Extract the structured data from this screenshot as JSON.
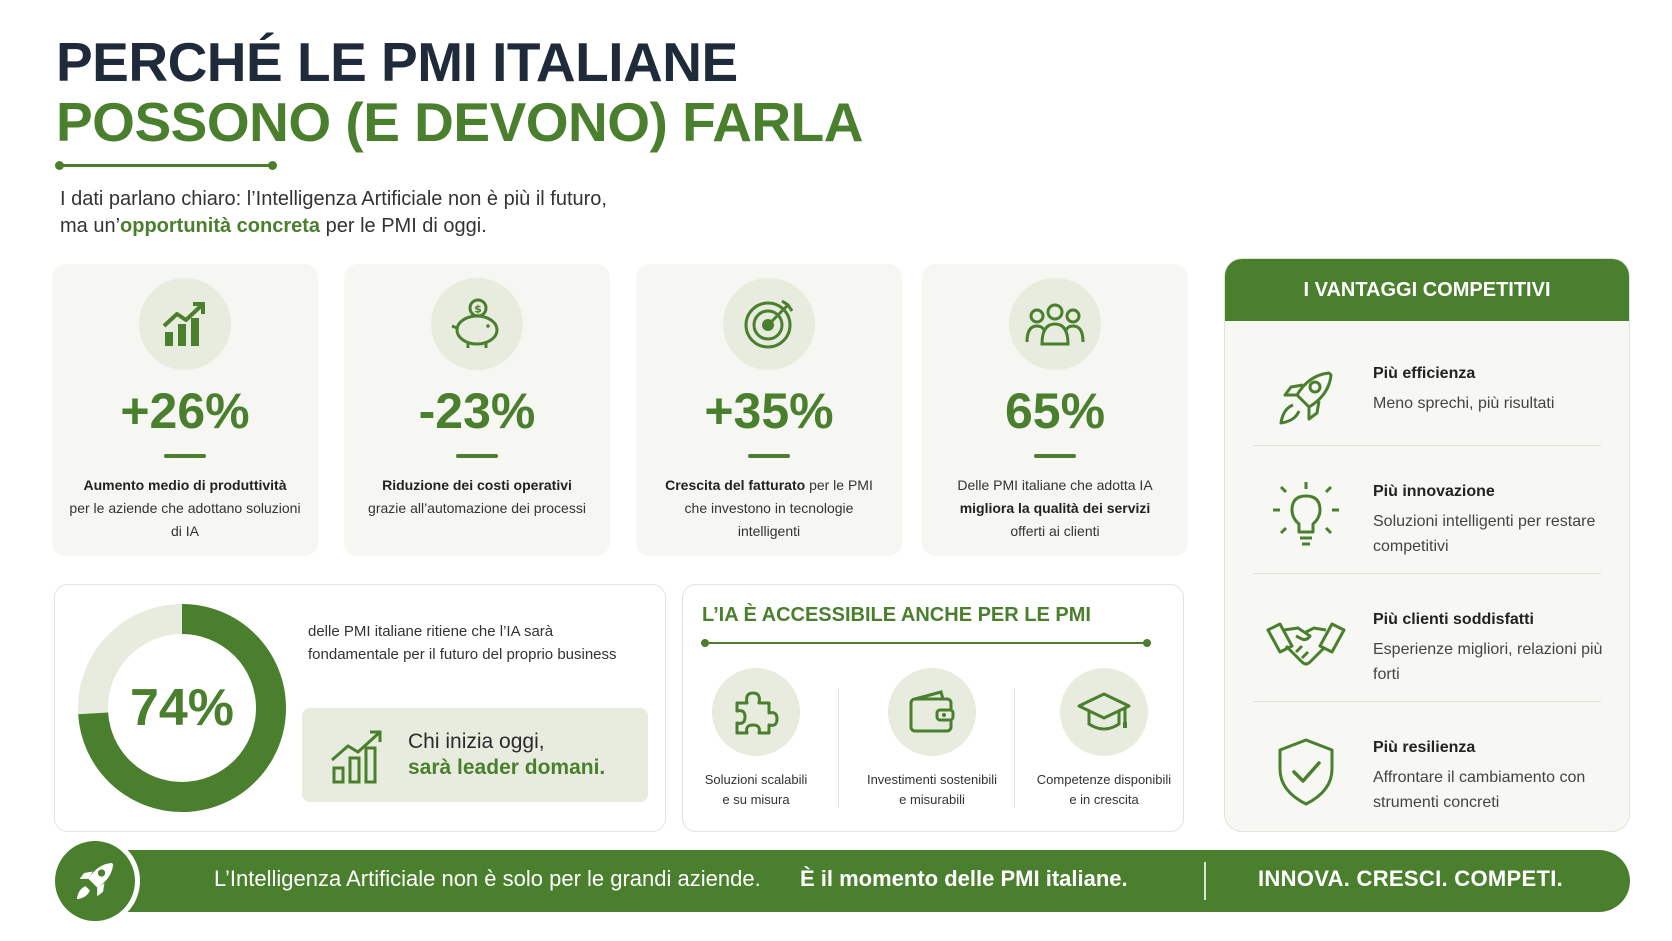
{
  "header": {
    "title_line1": "PERCHÉ LE PMI ITALIANE",
    "title_line2": "POSSONO (E DEVONO) FARLA",
    "intro_line1": "I dati parlano chiaro: l’Intelligenza Artificiale non è più il futuro,",
    "intro_line2_pre": "ma un’",
    "intro_line2_bold": "opportunità concreta",
    "intro_line2_post": " per le PMI di oggi."
  },
  "stats": [
    {
      "value": "+26%",
      "icon": "growth-chart-icon",
      "desc_bold": "Aumento medio di produttività",
      "desc_rest": "per le aziende che adottano soluzioni di IA"
    },
    {
      "value": "-23%",
      "icon": "piggy-bank-icon",
      "desc_bold": "Riduzione dei costi operativi",
      "desc_rest": "grazie all’automazione dei processi"
    },
    {
      "value": "+35%",
      "icon": "target-icon",
      "desc_bold": "Crescita del fatturato",
      "desc_rest": "per le PMI che investono in tecnologie intelligenti"
    },
    {
      "value": "65%",
      "icon": "people-icon",
      "desc_pre": "Delle PMI italiane che adotta IA",
      "desc_bold": "migliora la qualità dei servizi",
      "desc_rest": "offerti ai clienti"
    }
  ],
  "donut": {
    "value_label": "74%",
    "fraction": 0.74,
    "text_line1": "delle PMI italiane ritiene che l’IA sarà",
    "text_line2": "fondamentale per il futuro del proprio business",
    "leader_line1": "Chi inizia oggi,",
    "leader_line2": "sarà leader domani."
  },
  "accessible": {
    "title": "L’IA È ACCESSIBILE ANCHE PER LE PMI",
    "items": [
      {
        "icon": "puzzle-icon",
        "line1": "Soluzioni scalabili",
        "line2": "e su misura"
      },
      {
        "icon": "wallet-icon",
        "line1": "Investimenti sostenibili",
        "line2": "e misurabili"
      },
      {
        "icon": "graduation-cap-icon",
        "line1": "Competenze disponibili",
        "line2": "e in crescita"
      }
    ]
  },
  "advantages": {
    "title": "I VANTAGGI COMPETITIVI",
    "items": [
      {
        "icon": "rocket-icon",
        "title": "Più efficienza",
        "desc": "Meno sprechi, più risultati"
      },
      {
        "icon": "lightbulb-icon",
        "title": "Più innovazione",
        "desc": "Soluzioni intelligenti per restare competitivi"
      },
      {
        "icon": "handshake-icon",
        "title": "Più clienti soddisfatti",
        "desc": "Esperienze migliori, relazioni più forti"
      },
      {
        "icon": "shield-check-icon",
        "title": "Più resilienza",
        "desc": "Affrontare il cambiamento con strumenti concreti"
      }
    ]
  },
  "footer": {
    "text": "L’Intelligenza Artificiale non è solo per le grandi aziende.",
    "bold": "È il momento delle PMI italiane.",
    "slogan": "INNOVA. CRESCI. COMPETI.",
    "icon": "rocket-icon"
  },
  "colors": {
    "brand_green": "#4a7f2e",
    "light_green": "#e8ecdf",
    "dark_title": "#1f2b3a"
  }
}
